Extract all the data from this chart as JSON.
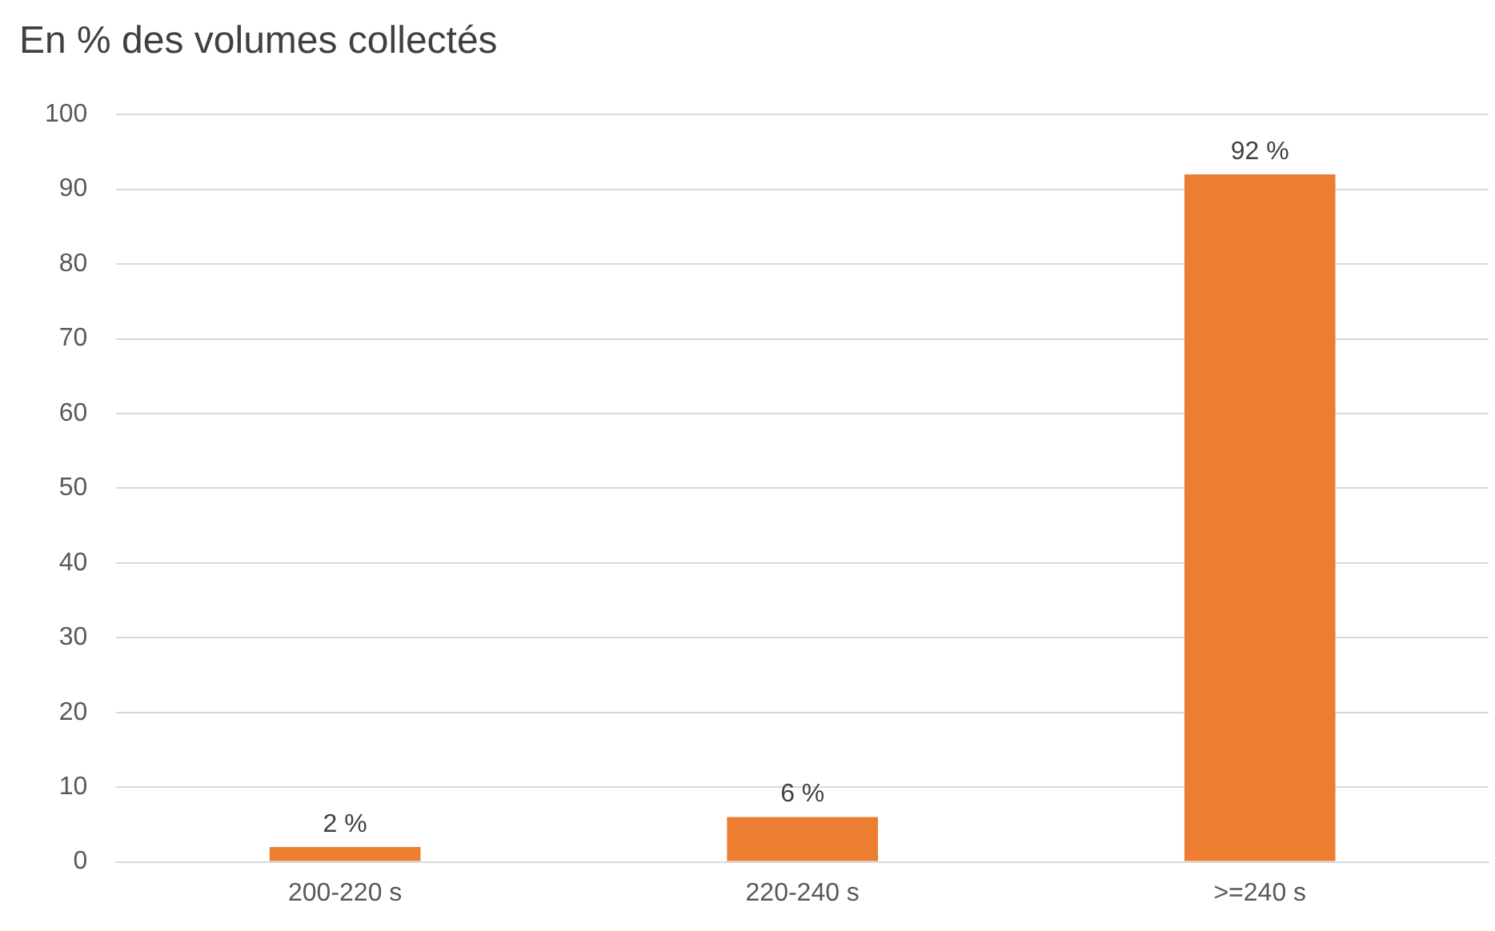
{
  "chart_data": {
    "type": "bar",
    "title": "En % des volumes collectés",
    "categories": [
      "200-220 s",
      "220-240 s",
      ">=240 s"
    ],
    "values": [
      2,
      6,
      92
    ],
    "color": "#ed7d31",
    "value_labels": [
      "2 %",
      "6 %",
      "92 %"
    ],
    "ylim": [
      0,
      100
    ],
    "yticks": [
      0,
      10,
      20,
      30,
      40,
      50,
      60,
      70,
      80,
      90,
      100
    ],
    "grid": "y",
    "legend": false
  }
}
